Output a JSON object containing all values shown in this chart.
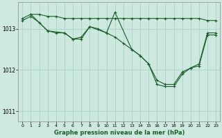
{
  "background_color": "#cde8df",
  "grid_color": "#a8d4c8",
  "line_color": "#1a5c2a",
  "marker_color": "#1a5c2a",
  "title": "Graphe pression niveau de la mer (hPa)",
  "xlim": [
    -0.5,
    23.5
  ],
  "ylim": [
    1010.75,
    1013.65
  ],
  "yticks": [
    1011,
    1012,
    1013
  ],
  "xticks": [
    0,
    1,
    2,
    3,
    4,
    5,
    6,
    7,
    8,
    9,
    10,
    11,
    12,
    13,
    14,
    15,
    16,
    17,
    18,
    19,
    20,
    21,
    22,
    23
  ],
  "series": [
    {
      "x": [
        0,
        1,
        2,
        3,
        4,
        5,
        6,
        7,
        8,
        9,
        10,
        11,
        12,
        13,
        14,
        15,
        16,
        17,
        18,
        19,
        20,
        21,
        22,
        23
      ],
      "y": [
        1013.25,
        1013.35,
        1013.35,
        1013.3,
        1013.3,
        1013.25,
        1013.25,
        1013.25,
        1013.25,
        1013.25,
        1013.25,
        1013.25,
        1013.25,
        1013.25,
        1013.25,
        1013.25,
        1013.25,
        1013.25,
        1013.25,
        1013.25,
        1013.25,
        1013.25,
        1013.2,
        1013.2
      ]
    },
    {
      "x": [
        0,
        1,
        2,
        3,
        4,
        5,
        6,
        7,
        8,
        9,
        10,
        11,
        12,
        13,
        14,
        15,
        16,
        17,
        18,
        19,
        20,
        21,
        22,
        23
      ],
      "y": [
        1013.2,
        1013.3,
        1013.15,
        1012.95,
        1012.9,
        1012.9,
        1012.75,
        1012.75,
        1013.05,
        1013.0,
        1012.9,
        1012.8,
        1012.65,
        1012.5,
        1012.35,
        1012.15,
        1011.75,
        1011.65,
        1011.65,
        1011.95,
        1012.05,
        1012.15,
        1012.9,
        1012.9
      ]
    },
    {
      "x": [
        1,
        3,
        5,
        6,
        7,
        8,
        10,
        11,
        13,
        14,
        15,
        16,
        17,
        18,
        19,
        20,
        21,
        22,
        23
      ],
      "y": [
        1013.35,
        1012.95,
        1012.9,
        1012.75,
        1012.8,
        1013.05,
        1012.9,
        1013.4,
        1012.5,
        1012.35,
        1012.15,
        1011.65,
        1011.6,
        1011.6,
        1011.9,
        1012.05,
        1012.1,
        1012.85,
        1012.85
      ]
    }
  ]
}
